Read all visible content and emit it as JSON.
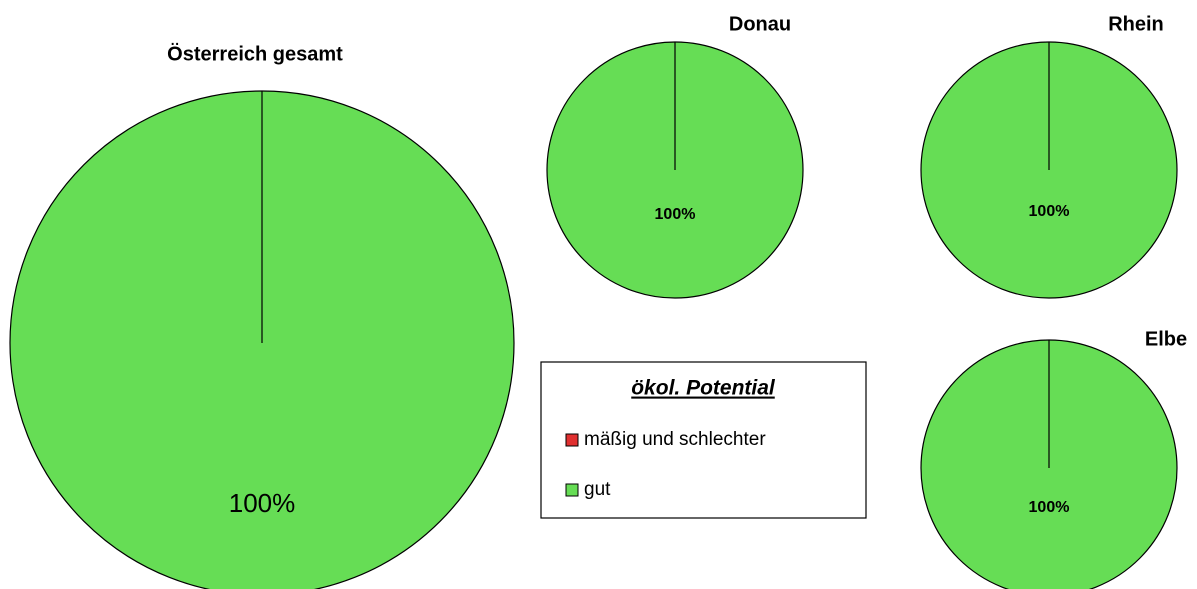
{
  "chart_data": [
    {
      "type": "pie",
      "title": "Österreich gesamt",
      "categories": [
        "mäßig und schlechter",
        "gut"
      ],
      "values": [
        0,
        100
      ],
      "value_labels": [
        null,
        "100%"
      ],
      "colors": [
        "#e03030",
        "#66dd55"
      ],
      "legend_title": "ökol. Potential"
    },
    {
      "type": "pie",
      "title": "Donau",
      "categories": [
        "mäßig und schlechter",
        "gut"
      ],
      "values": [
        0,
        100
      ],
      "value_labels": [
        null,
        "100%"
      ],
      "colors": [
        "#e03030",
        "#66dd55"
      ]
    },
    {
      "type": "pie",
      "title": "Rhein",
      "categories": [
        "mäßig und schlechter",
        "gut"
      ],
      "values": [
        0,
        100
      ],
      "value_labels": [
        null,
        "100%"
      ],
      "colors": [
        "#e03030",
        "#66dd55"
      ]
    },
    {
      "type": "pie",
      "title": "Elbe",
      "categories": [
        "mäßig und schlechter",
        "gut"
      ],
      "values": [
        0,
        100
      ],
      "value_labels": [
        null,
        "100%"
      ],
      "colors": [
        "#e03030",
        "#66dd55"
      ]
    }
  ]
}
